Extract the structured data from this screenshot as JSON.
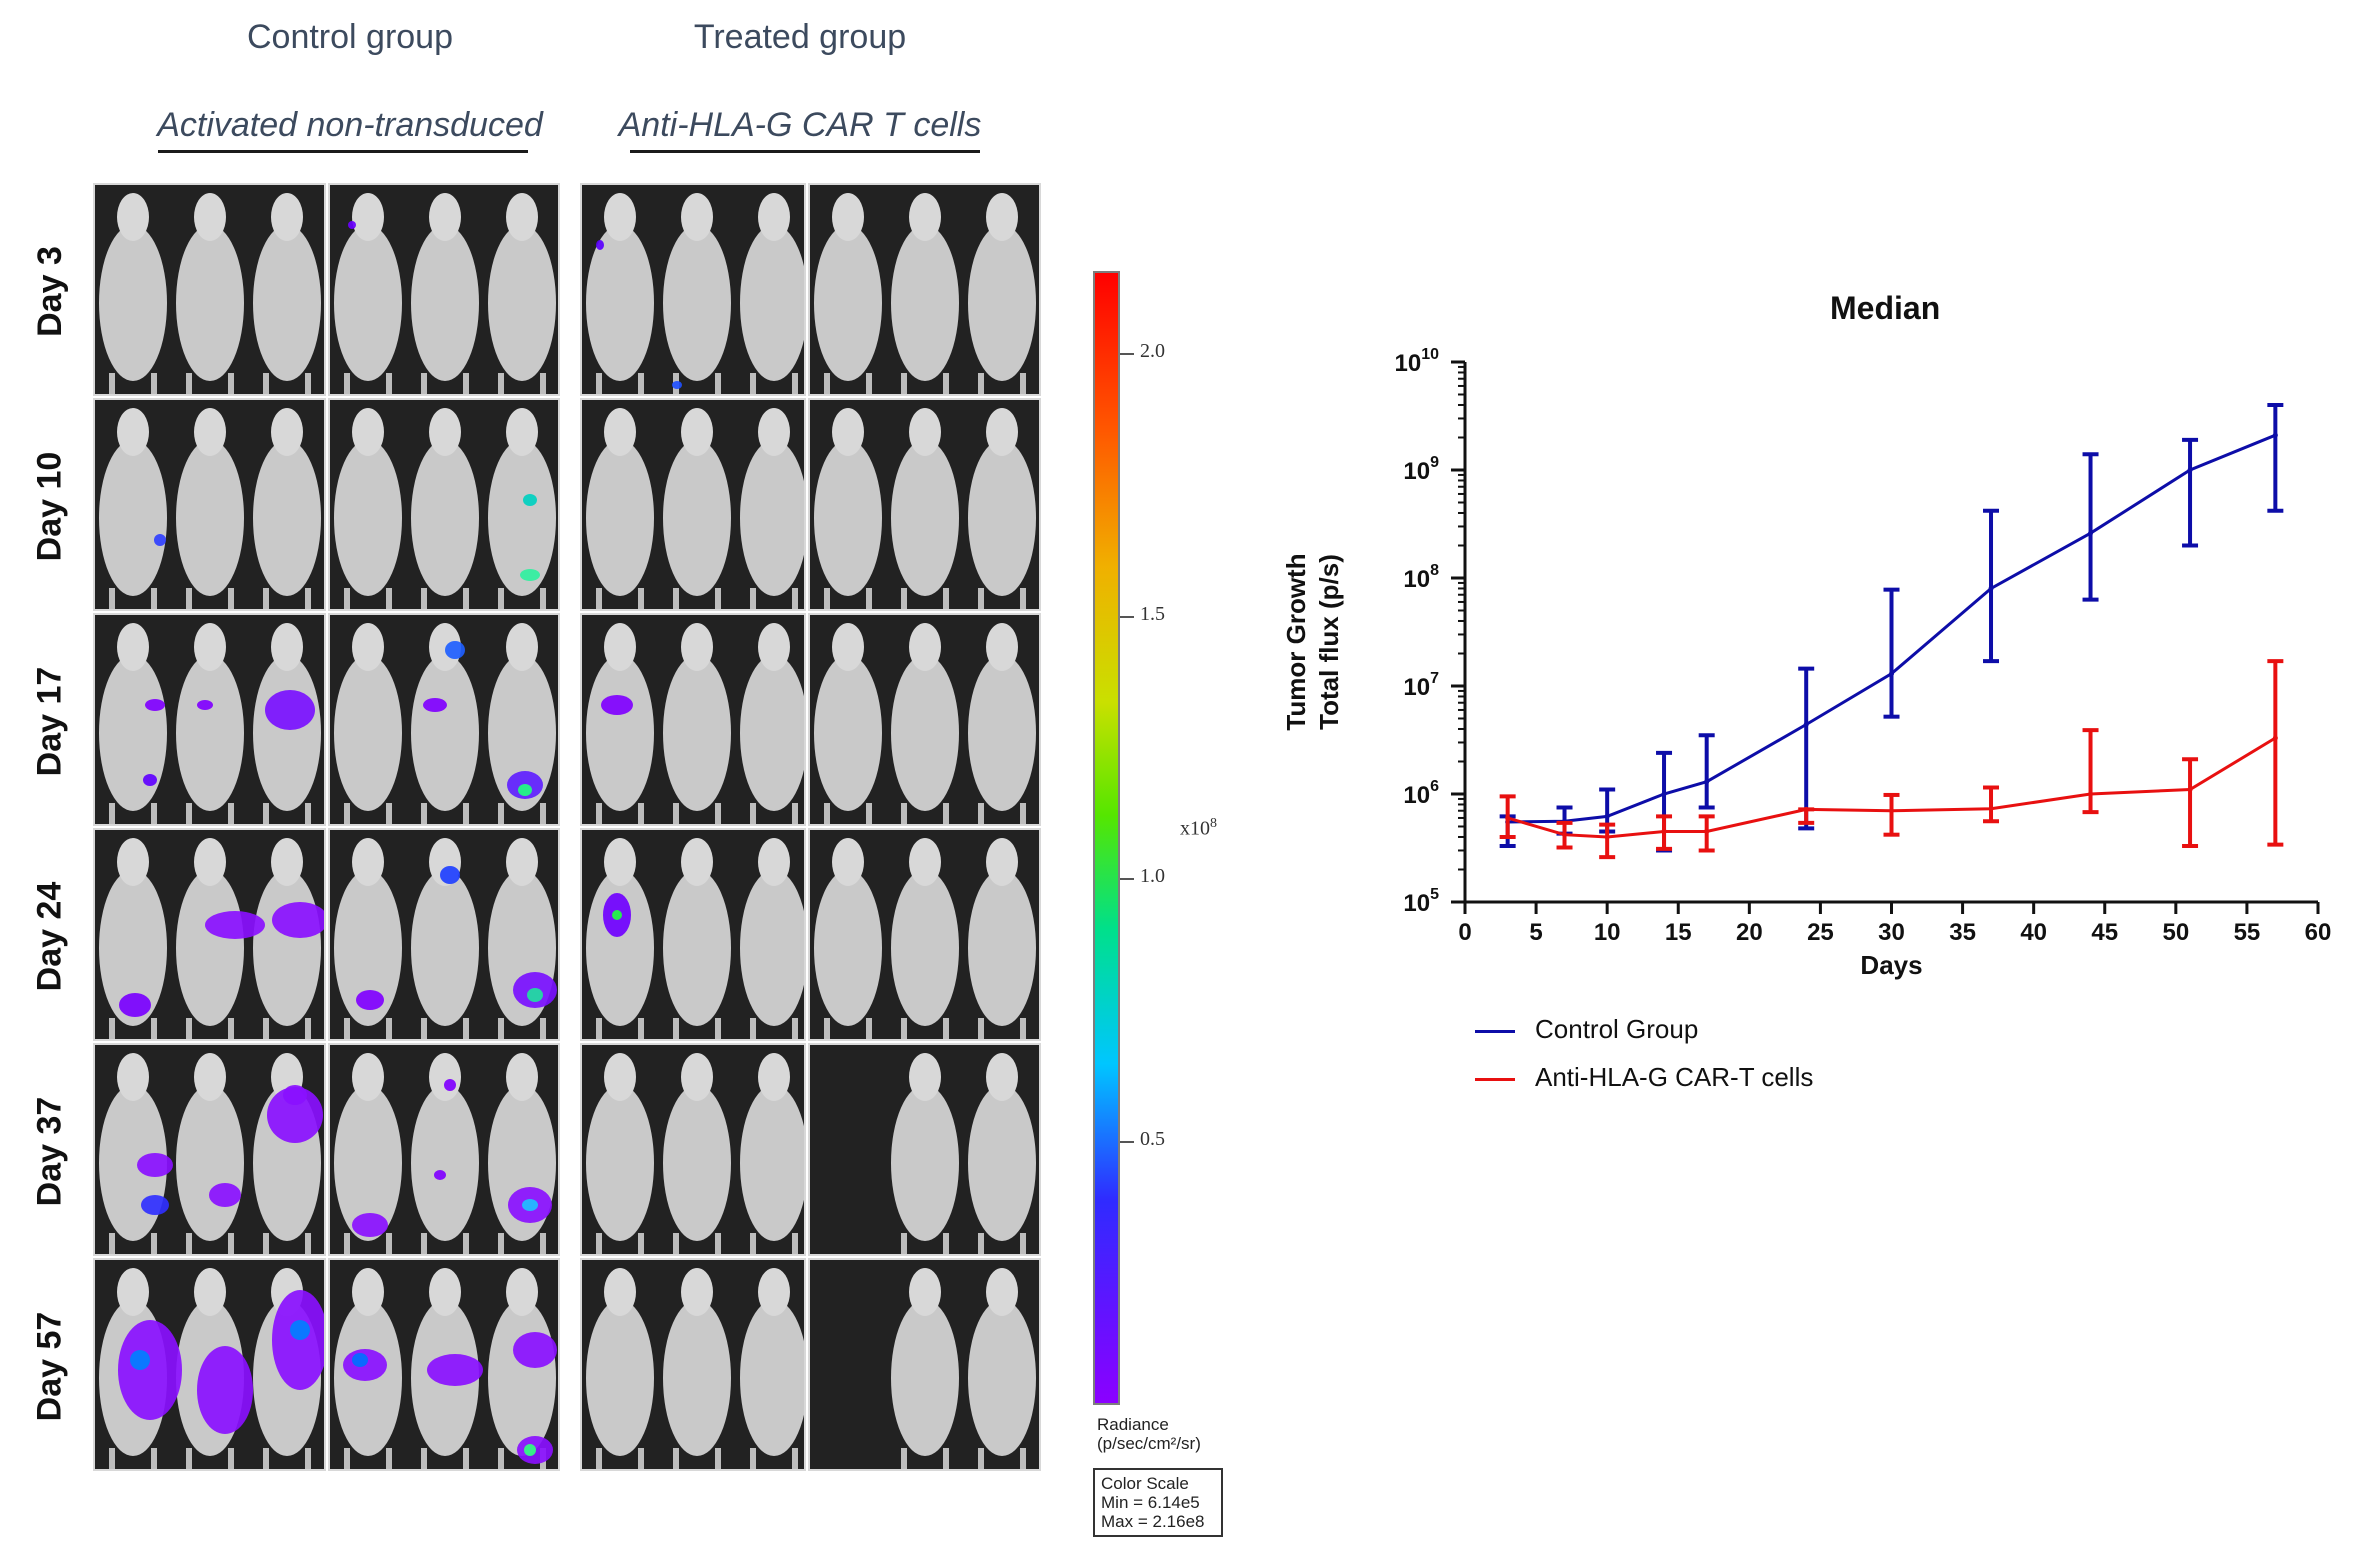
{
  "figure": {
    "control": {
      "title": "Control group",
      "subtitle": "Activated non-transduced"
    },
    "treated": {
      "title": "Treated group",
      "subtitle": "Anti-HLA-G CAR T cells"
    },
    "days": [
      "Day 3",
      "Day 10",
      "Day 17",
      "Day 24",
      "Day 37",
      "Day 57"
    ]
  },
  "colorbar": {
    "ticks": [
      "2.0",
      "1.5",
      "1.0",
      "0.5"
    ],
    "tick_values": [
      2.0,
      1.5,
      1.0,
      0.5
    ],
    "exponent": "x10",
    "exponent_power": "8",
    "radiance_label": "Radiance",
    "radiance_units": "(p/sec/cm²/sr)",
    "scale_title": "Color Scale",
    "scale_min": "Min = 6.14e5",
    "scale_max": "Max = 2.16e8"
  },
  "chart_data": {
    "type": "line",
    "title": "Median",
    "xlabel": "Days",
    "ylabel_line1": "Tumor Growth",
    "ylabel_line2": "Total flux (p/s)",
    "xlim": [
      0,
      60
    ],
    "x_ticks": [
      "0",
      "5",
      "10",
      "15",
      "20",
      "25",
      "30",
      "35",
      "40",
      "45",
      "50",
      "55",
      "60"
    ],
    "ylim": [
      100000,
      10000000000
    ],
    "y_scale": "log",
    "y_tick_base": "10",
    "y_tick_exponents": [
      "5",
      "6",
      "7",
      "8",
      "9",
      "10"
    ],
    "legend_position": "bottom-left",
    "series": [
      {
        "name": "Control Group",
        "color": "#0d0da8",
        "x": [
          3,
          7,
          10,
          14,
          17,
          24,
          30,
          37,
          44,
          51,
          57
        ],
        "y": [
          550000,
          560000,
          620000,
          1000000,
          1300000,
          4400000,
          13000000,
          80000000,
          260000000,
          1000000000,
          2100000000
        ],
        "err_low": [
          330000,
          430000,
          450000,
          300000,
          750000,
          480000,
          5200000,
          17000000,
          63000000,
          200000000,
          420000000
        ],
        "err_high": [
          620000,
          750000,
          1100000,
          2400000,
          3500000,
          14500000,
          78000000,
          420000000,
          1400000000,
          1900000000,
          4000000000
        ]
      },
      {
        "name": "Anti-HLA-G CAR-T cells",
        "color": "#e81010",
        "x": [
          3,
          7,
          10,
          14,
          17,
          24,
          30,
          37,
          44,
          51,
          57
        ],
        "y": [
          600000,
          420000,
          400000,
          450000,
          450000,
          720000,
          700000,
          730000,
          1000000,
          1100000,
          3300000
        ],
        "err_low": [
          400000,
          320000,
          260000,
          310000,
          300000,
          540000,
          420000,
          560000,
          680000,
          330000,
          340000
        ],
        "err_high": [
          950000,
          540000,
          520000,
          620000,
          620000,
          720000,
          980000,
          1150000,
          3900000,
          2100000,
          17000000
        ]
      }
    ]
  }
}
